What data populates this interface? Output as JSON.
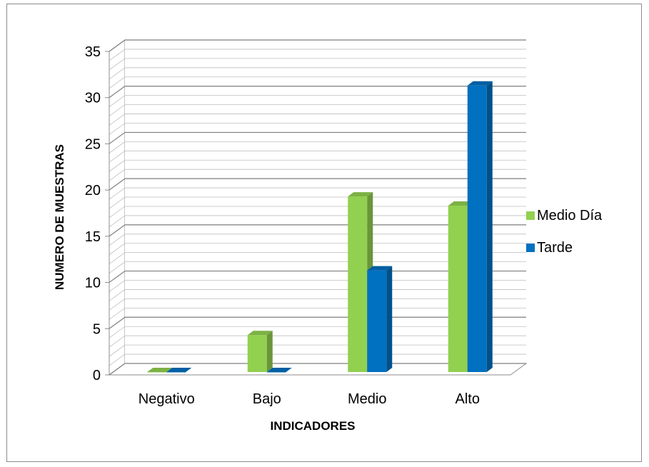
{
  "chart_data": {
    "type": "bar",
    "categories": [
      "Negativo",
      "Bajo",
      "Medio",
      "Alto"
    ],
    "series": [
      {
        "name": "Medio Día",
        "values": [
          0,
          4,
          19,
          18
        ],
        "color": "#92D050"
      },
      {
        "name": "Tarde",
        "values": [
          0,
          0,
          11,
          31
        ],
        "color": "#0070C0"
      }
    ],
    "xlabel": "INDICADORES",
    "ylabel": "NUMERO  DE  MUESTRAS",
    "ylim": [
      0,
      35
    ],
    "yticks": [
      "0",
      "5",
      "10",
      "15",
      "20",
      "25",
      "30",
      "35"
    ],
    "grid": true,
    "legend_position": "right",
    "style": "3d-clustered-column"
  }
}
